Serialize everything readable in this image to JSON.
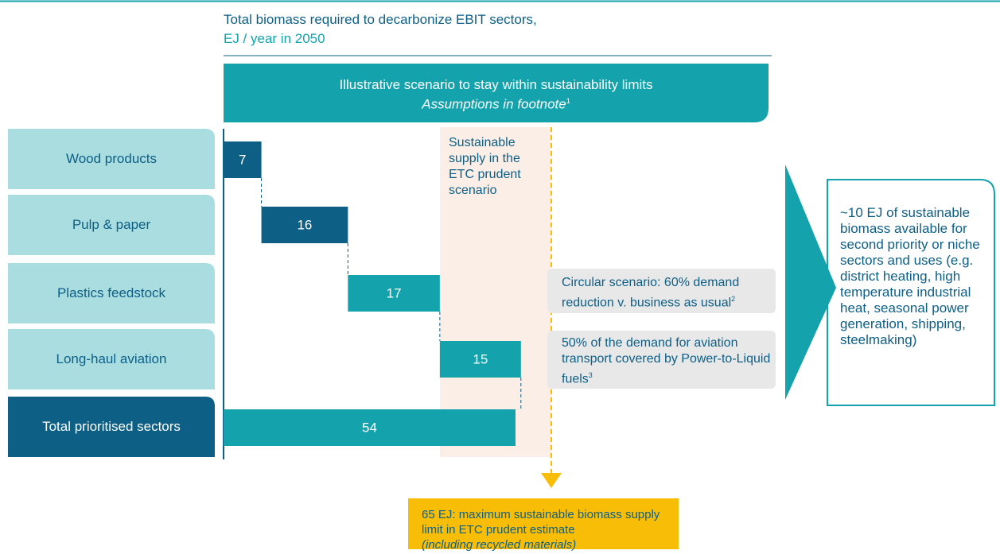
{
  "chart_data": {
    "type": "waterfall",
    "title": "Total biomass required to decarbonize EBIT sectors,",
    "subtitle": "EJ / year in 2050",
    "banner": "Illustrative scenario to stay within sustainability limits",
    "banner_note": "Assumptions in footnote",
    "banner_note_ref": "1",
    "categories": [
      "Wood products",
      "Pulp & paper",
      "Plastics feedstock",
      "Long-haul aviation"
    ],
    "values": [
      7,
      16,
      17,
      15
    ],
    "colors": [
      "#0d5f86",
      "#0d5f86",
      "#14a3ac",
      "#14a3ac"
    ],
    "total_label": "Total prioritised sectors",
    "total": 54,
    "total_color": "#14a3ac",
    "xlim": [
      0,
      54
    ],
    "band_label": "Sustainable supply in the ETC prudent scenario",
    "notes": [
      {
        "text": "Circular scenario: 60% demand reduction v. business as usual",
        "ref": "2"
      },
      {
        "text": "50% of the demand for aviation transport covered by Power-to-Liquid fuels",
        "ref": "3"
      }
    ],
    "limit_text": "65 EJ: maximum sustainable biomass supply limit in ETC prudent estimate",
    "limit_note": "(including recycled materials)",
    "conclusion": "~10 EJ of sustainable biomass available for second priority or niche sectors and uses (e.g. district heating, high temperature industrial heat, seasonal power generation, shipping, steelmaking)"
  }
}
